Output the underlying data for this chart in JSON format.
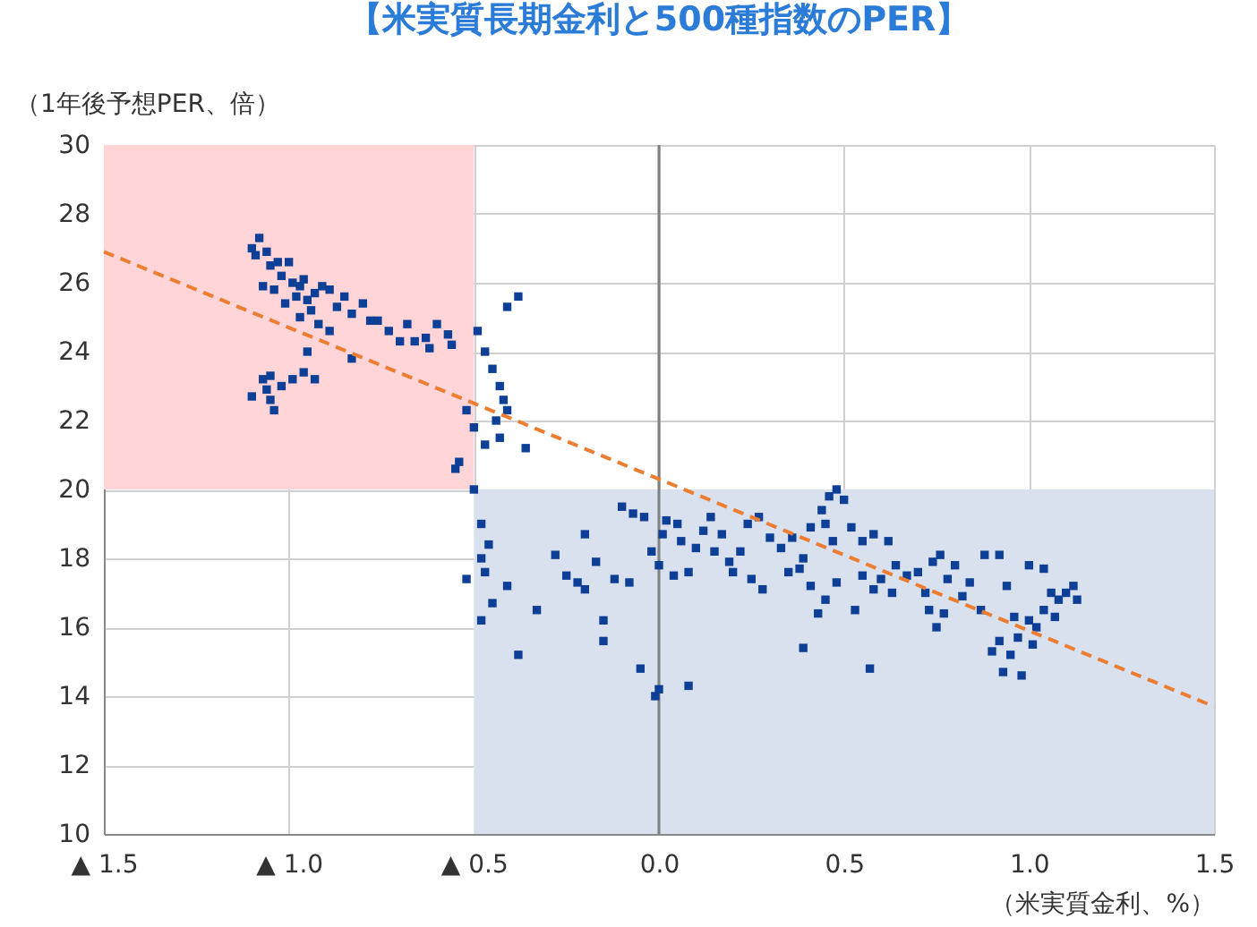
{
  "chart_data": {
    "type": "scatter",
    "title": "【米実質長期金利と500種指数のPER】",
    "xlabel": "（米実質金利、%）",
    "ylabel": "（1年後予想PER、倍）",
    "xlim": [
      -1.5,
      1.5
    ],
    "ylim": [
      10,
      30
    ],
    "xticks": [
      {
        "value": -1.5,
        "label": "▲ 1.5"
      },
      {
        "value": -1.0,
        "label": "▲ 1.0"
      },
      {
        "value": -0.5,
        "label": "▲ 0.5"
      },
      {
        "value": 0,
        "label": "0.0"
      },
      0.5,
      {
        "value": 1.0,
        "label": "1.0"
      },
      1.5
    ],
    "yticks": [
      10,
      12,
      14,
      16,
      18,
      20,
      22,
      24,
      26,
      28,
      30
    ],
    "grid": true,
    "marker": "square",
    "ref_lines": [
      {
        "axis": "x",
        "value": 0,
        "color": "#7f7f7f",
        "line_style": "solid"
      }
    ],
    "series": [
      {
        "type": "histogram",
        "color": "#ffd5d8",
        "bins": [
          -1.5,
          -0.5
        ],
        "base": [
          20
        ],
        "values": [
          10
        ]
      },
      {
        "type": "histogram",
        "color": "#d9e0ee",
        "bins": [
          -0.5,
          1.5
        ],
        "base": [
          10
        ],
        "values": [
          10
        ]
      },
      {
        "color": "#0d3f96",
        "x": [
          -1.1,
          -1.09,
          -1.08,
          -1.06,
          -1.05,
          -1.03,
          -1.02,
          -1.0,
          -0.99,
          -1.04,
          -1.07,
          -0.98,
          -0.97,
          -0.96,
          -1.01,
          -0.95,
          -0.93,
          -0.91,
          -0.89,
          -0.94,
          -0.97,
          -0.92,
          -0.87,
          -0.85,
          -0.83,
          -0.8,
          -0.78,
          -0.76,
          -0.73,
          -0.7,
          -0.68,
          -0.66,
          -0.63,
          -0.62,
          -0.6,
          -0.57,
          -0.56,
          -0.89,
          -0.95,
          -0.83,
          -1.05,
          -1.1,
          -1.07,
          -1.05,
          -1.04,
          -1.02,
          -0.99,
          -0.96,
          -0.93,
          -1.06,
          -0.52,
          -0.5,
          -0.49,
          -0.47,
          -0.45,
          -0.43,
          -0.42,
          -0.41,
          -0.44,
          -0.47,
          -0.43,
          -0.38,
          -0.41,
          -0.36,
          -0.54,
          -0.55,
          -0.5,
          -0.48,
          -0.48,
          -0.47,
          -0.48,
          -0.46,
          -0.52,
          -0.45,
          -0.41,
          -0.38,
          -0.33,
          -0.28,
          -0.25,
          -0.22,
          -0.2,
          -0.15,
          -0.2,
          -0.17,
          -0.12,
          -0.15,
          -0.1,
          -0.07,
          -0.04,
          -0.05,
          -0.01,
          0.0,
          0.08,
          -0.08,
          -0.02,
          0.0,
          0.01,
          0.02,
          0.05,
          0.06,
          0.04,
          0.08,
          0.1,
          0.12,
          0.14,
          0.17,
          0.15,
          0.19,
          0.22,
          0.24,
          0.27,
          0.3,
          0.2,
          0.25,
          0.28,
          0.33,
          0.36,
          0.39,
          0.41,
          0.44,
          0.46,
          0.48,
          0.5,
          0.45,
          0.47,
          0.52,
          0.55,
          0.58,
          0.62,
          0.38,
          0.41,
          0.43,
          0.45,
          0.39,
          0.35,
          0.48,
          0.55,
          0.58,
          0.53,
          0.6,
          0.64,
          0.67,
          0.57,
          0.63,
          0.7,
          0.72,
          0.74,
          0.76,
          0.78,
          0.8,
          0.82,
          0.84,
          0.73,
          0.77,
          0.75,
          0.88,
          0.92,
          0.87,
          0.9,
          0.92,
          0.95,
          0.96,
          0.93,
          0.97,
          1.0,
          0.98,
          1.02,
          1.04,
          1.06,
          1.08,
          1.1,
          1.12,
          1.13,
          1.04,
          1.0,
          1.07,
          0.94,
          1.01
        ],
        "values": [
          27.0,
          26.8,
          27.3,
          26.9,
          26.5,
          26.6,
          26.2,
          26.6,
          26.0,
          25.8,
          25.9,
          25.6,
          25.9,
          26.1,
          25.4,
          25.5,
          25.7,
          25.9,
          25.8,
          25.2,
          25.0,
          24.8,
          25.3,
          25.6,
          25.1,
          25.4,
          24.9,
          24.9,
          24.6,
          24.3,
          24.8,
          24.3,
          24.4,
          24.1,
          24.8,
          24.5,
          24.2,
          24.6,
          24.0,
          23.8,
          23.3,
          22.7,
          23.2,
          22.6,
          22.3,
          23.0,
          23.2,
          23.4,
          23.2,
          22.9,
          22.3,
          21.8,
          24.6,
          24.0,
          23.5,
          23.0,
          22.6,
          22.3,
          22.0,
          21.3,
          21.5,
          25.6,
          25.3,
          21.2,
          20.8,
          20.6,
          20.0,
          19.0,
          18.0,
          17.6,
          16.2,
          18.4,
          17.4,
          16.7,
          17.2,
          15.2,
          16.5,
          18.1,
          17.5,
          17.3,
          17.1,
          16.2,
          18.7,
          17.9,
          17.4,
          15.6,
          19.5,
          19.3,
          19.2,
          14.8,
          14.0,
          14.2,
          14.3,
          17.3,
          18.2,
          17.8,
          18.7,
          19.1,
          19.0,
          18.5,
          17.5,
          17.6,
          18.3,
          18.8,
          19.2,
          18.7,
          18.2,
          17.9,
          18.2,
          19.0,
          19.2,
          18.6,
          17.6,
          17.4,
          17.1,
          18.3,
          18.6,
          18.0,
          18.9,
          19.4,
          19.8,
          20.0,
          19.7,
          19.0,
          18.5,
          18.9,
          18.5,
          18.7,
          18.5,
          17.7,
          17.2,
          16.4,
          16.8,
          15.4,
          17.6,
          17.3,
          17.5,
          17.1,
          16.5,
          17.4,
          17.8,
          17.5,
          14.8,
          17.0,
          17.6,
          17.0,
          17.9,
          18.1,
          17.4,
          17.8,
          16.9,
          17.3,
          16.5,
          16.4,
          16.0,
          18.1,
          18.1,
          16.5,
          15.3,
          15.6,
          15.2,
          16.3,
          14.7,
          15.7,
          16.2,
          14.6,
          16.0,
          16.5,
          17.0,
          16.8,
          17.0,
          17.2,
          16.8,
          17.7,
          17.8,
          16.3,
          17.2,
          15.5
        ]
      },
      {
        "type": "line",
        "color": "#ed7d31",
        "line_style": "dashed",
        "marker": "none",
        "x": [
          -1.5,
          1.5
        ],
        "values": [
          26.9,
          13.7
        ]
      }
    ]
  }
}
